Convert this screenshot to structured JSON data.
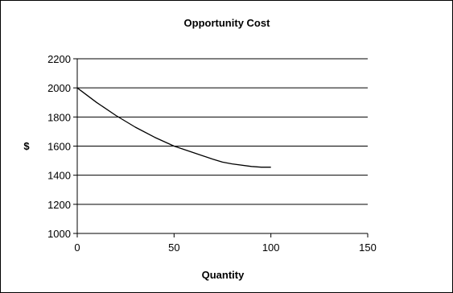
{
  "chart_data": {
    "type": "line",
    "title": "Opportunity Cost",
    "xlabel": "Quantity",
    "ylabel": "$",
    "xlim": [
      0,
      150
    ],
    "ylim": [
      1000,
      2200
    ],
    "x_ticks": [
      0,
      50,
      100,
      150
    ],
    "y_ticks": [
      1000,
      1200,
      1400,
      1600,
      1800,
      2000,
      2200
    ],
    "grid": "horizontal",
    "series": [
      {
        "x": [
          0,
          10,
          20,
          30,
          40,
          50,
          60,
          70,
          75,
          80,
          90,
          95,
          100
        ],
        "y": [
          2000,
          1900,
          1810,
          1730,
          1660,
          1600,
          1555,
          1510,
          1490,
          1478,
          1460,
          1455,
          1455
        ],
        "color": "#000000"
      }
    ]
  }
}
